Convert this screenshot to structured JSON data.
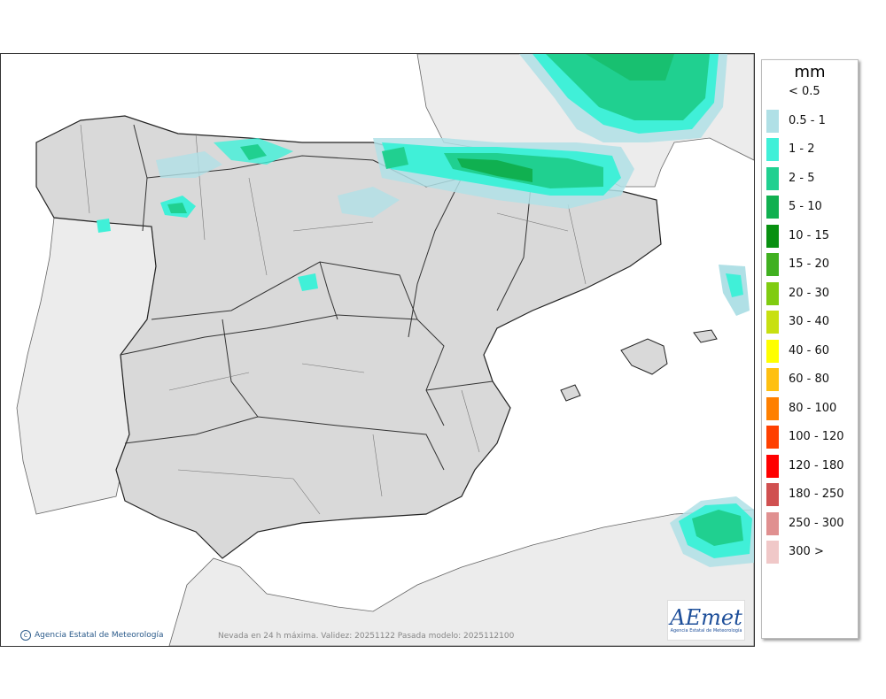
{
  "legend": {
    "unit": "mm",
    "classes": [
      {
        "label": "< 0.5",
        "color": "#ffffff"
      },
      {
        "label": "0.5 - 1",
        "color": "#b0e0e6"
      },
      {
        "label": "1 - 2",
        "color": "#40f0d8"
      },
      {
        "label": "2 - 5",
        "color": "#20d090"
      },
      {
        "label": "5 - 10",
        "color": "#10b050"
      },
      {
        "label": "10 - 15",
        "color": "#089010"
      },
      {
        "label": "15 - 20",
        "color": "#40b020"
      },
      {
        "label": "20 - 30",
        "color": "#80cc10"
      },
      {
        "label": "30 - 40",
        "color": "#c8e010"
      },
      {
        "label": "40 - 60",
        "color": "#ffff00"
      },
      {
        "label": "60 - 80",
        "color": "#ffc010"
      },
      {
        "label": "80 - 100",
        "color": "#ff8000"
      },
      {
        "label": "100 - 120",
        "color": "#ff4000"
      },
      {
        "label": "120 - 180",
        "color": "#ff0000"
      },
      {
        "label": "180 - 250",
        "color": "#d05050"
      },
      {
        "label": "250 - 300",
        "color": "#e09090"
      },
      {
        "label": "300 >",
        "color": "#f0c8c8"
      }
    ]
  },
  "credit": "Agencia Estatal de Meteorología",
  "caption": "Nevada en 24 h máxima. Validez: 20251122 Pasada modelo: 2025112100",
  "logo": {
    "word": "AEmet",
    "sub": "Agencia Estatal de Meteorología"
  },
  "colors": {
    "land": "#d9d9d9",
    "foreign_land": "#ececec",
    "sea": "#ffffff",
    "border": "#222222"
  }
}
